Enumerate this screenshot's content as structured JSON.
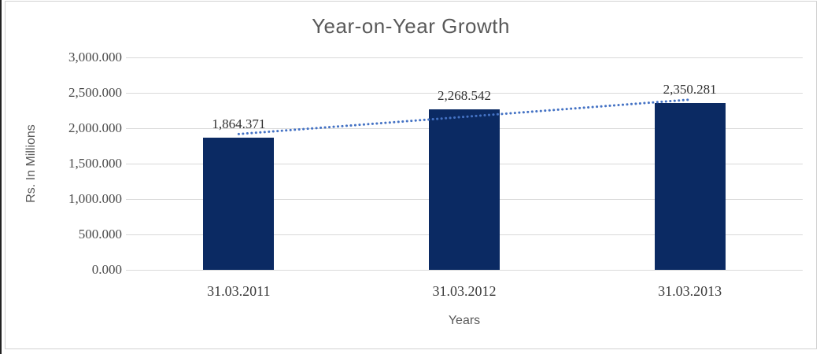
{
  "window": {
    "edge_color": "#222222",
    "frame_border_color": "#d2d2d2",
    "background": "#ffffff"
  },
  "colors": {
    "title": "#595959",
    "axis_title": "#595959",
    "y_tick_label": "#4a4a4a",
    "x_tick_label": "#3a3a3a",
    "data_label": "#303030",
    "gridline": "#d9d9d9",
    "bar": "#0b2a63",
    "trendline": "#4472c4"
  },
  "chart_data": {
    "type": "bar",
    "title": "Year-on-Year Growth",
    "xlabel": "Years",
    "ylabel": "Rs. In Millions",
    "categories": [
      "31.03.2011",
      "31.03.2012",
      "31.03.2013"
    ],
    "values": [
      1864.371,
      2268.542,
      2350.281
    ],
    "value_labels": [
      "1,864.371",
      "2,268.542",
      "2,350.281"
    ],
    "series_name": "",
    "ylim": [
      0,
      3000
    ],
    "y_tick_values": [
      0,
      500,
      1000,
      1500,
      2000,
      2500,
      3000
    ],
    "y_tick_labels": [
      "0.000",
      "500.000",
      "1,000.000",
      "1,500.000",
      "2,000.000",
      "2,500.000",
      "3,000.000"
    ],
    "grid": "horizontal",
    "legend": "none",
    "trendline": {
      "type": "linear",
      "style": "dotted"
    }
  }
}
